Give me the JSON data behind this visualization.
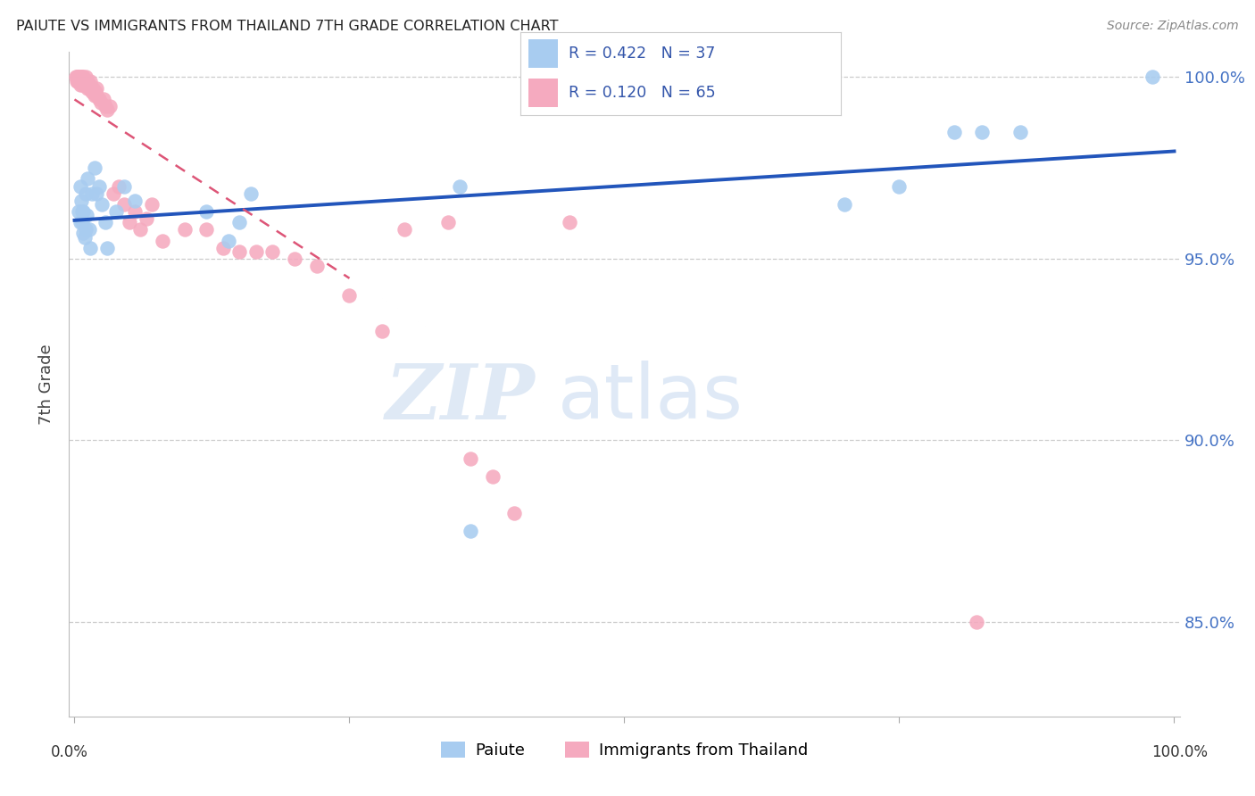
{
  "title": "PAIUTE VS IMMIGRANTS FROM THAILAND 7TH GRADE CORRELATION CHART",
  "source": "Source: ZipAtlas.com",
  "ylabel": "7th Grade",
  "xlim": [
    -0.005,
    1.005
  ],
  "ylim": [
    0.824,
    1.007
  ],
  "yticks": [
    0.85,
    0.9,
    0.95,
    1.0
  ],
  "ytick_labels": [
    "85.0%",
    "90.0%",
    "95.0%",
    "100.0%"
  ],
  "paiute_color": "#A8CCF0",
  "thailand_color": "#F5AABF",
  "trend_blue": "#2255BB",
  "trend_pink": "#DD5577",
  "legend_R_blue": "R = 0.422",
  "legend_N_blue": "N = 37",
  "legend_R_pink": "R = 0.120",
  "legend_N_pink": "N = 65",
  "paiute_x": [
    0.004,
    0.005,
    0.005,
    0.006,
    0.007,
    0.007,
    0.008,
    0.008,
    0.009,
    0.01,
    0.01,
    0.011,
    0.012,
    0.013,
    0.014,
    0.016,
    0.018,
    0.02,
    0.022,
    0.025,
    0.028,
    0.03,
    0.038,
    0.045,
    0.055,
    0.12,
    0.14,
    0.15,
    0.16,
    0.35,
    0.36,
    0.7,
    0.75,
    0.8,
    0.825,
    0.86,
    0.98
  ],
  "paiute_y": [
    0.963,
    0.97,
    0.96,
    0.966,
    0.963,
    0.96,
    0.963,
    0.957,
    0.956,
    0.968,
    0.958,
    0.962,
    0.972,
    0.958,
    0.953,
    0.968,
    0.975,
    0.968,
    0.97,
    0.965,
    0.96,
    0.953,
    0.963,
    0.97,
    0.966,
    0.963,
    0.955,
    0.96,
    0.968,
    0.97,
    0.875,
    0.965,
    0.97,
    0.985,
    0.985,
    0.985,
    1.0
  ],
  "thailand_x": [
    0.001,
    0.002,
    0.002,
    0.003,
    0.003,
    0.004,
    0.004,
    0.005,
    0.005,
    0.005,
    0.006,
    0.006,
    0.007,
    0.007,
    0.008,
    0.008,
    0.009,
    0.009,
    0.01,
    0.01,
    0.011,
    0.012,
    0.012,
    0.013,
    0.013,
    0.014,
    0.015,
    0.016,
    0.017,
    0.018,
    0.019,
    0.02,
    0.02,
    0.022,
    0.024,
    0.026,
    0.028,
    0.03,
    0.032,
    0.035,
    0.04,
    0.045,
    0.05,
    0.055,
    0.06,
    0.065,
    0.07,
    0.08,
    0.1,
    0.12,
    0.135,
    0.15,
    0.165,
    0.18,
    0.2,
    0.22,
    0.25,
    0.28,
    0.3,
    0.34,
    0.36,
    0.38,
    0.4,
    0.45,
    0.82
  ],
  "thailand_y": [
    1.0,
    1.0,
    0.999,
    1.0,
    0.999,
    1.0,
    0.999,
    1.0,
    0.999,
    0.998,
    1.0,
    0.999,
    1.0,
    0.998,
    1.0,
    0.999,
    0.999,
    0.998,
    1.0,
    0.999,
    0.998,
    0.997,
    0.999,
    0.998,
    0.997,
    0.999,
    0.997,
    0.996,
    0.997,
    0.995,
    0.996,
    0.997,
    0.995,
    0.994,
    0.993,
    0.994,
    0.992,
    0.991,
    0.992,
    0.968,
    0.97,
    0.965,
    0.96,
    0.963,
    0.958,
    0.961,
    0.965,
    0.955,
    0.958,
    0.958,
    0.953,
    0.952,
    0.952,
    0.952,
    0.95,
    0.948,
    0.94,
    0.93,
    0.958,
    0.96,
    0.895,
    0.89,
    0.88,
    0.96,
    0.85
  ],
  "watermark_zip": "ZIP",
  "watermark_atlas": "atlas",
  "background_color": "#ffffff",
  "grid_color": "#cccccc",
  "legend_label_blue": "Paiute",
  "legend_label_pink": "Immigrants from Thailand"
}
